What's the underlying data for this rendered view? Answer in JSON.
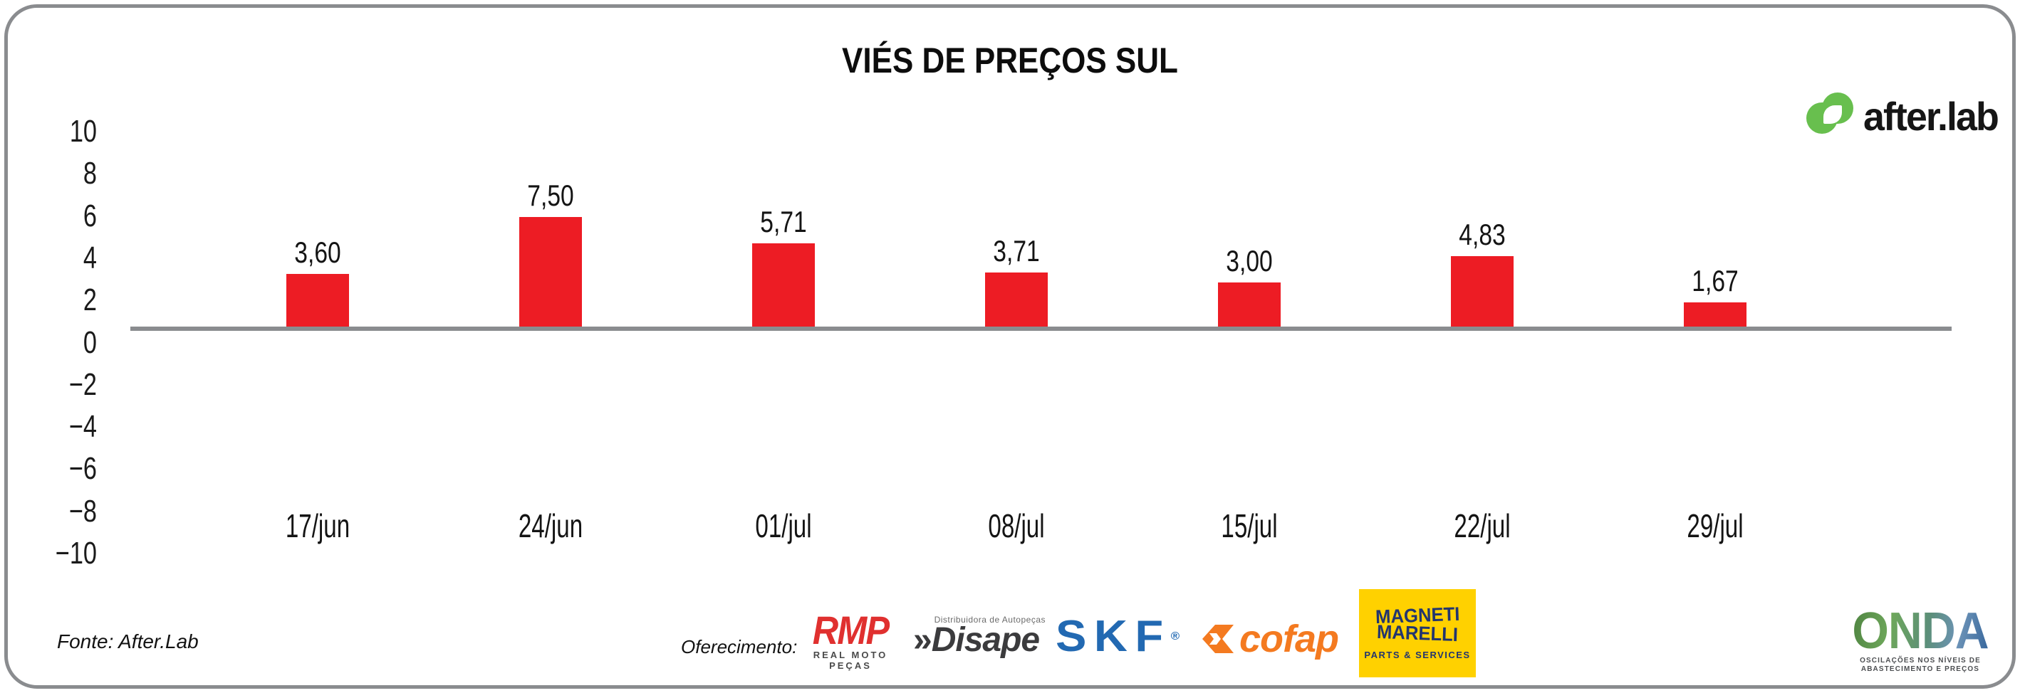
{
  "header": {
    "title": "VIÉS DE PREÇOS SUL"
  },
  "brand": {
    "wordmark": "after.lab",
    "icon_color": "#68bf4e"
  },
  "chart_data": {
    "type": "bar",
    "title": "VIÉS DE PREÇOS SUL",
    "categories": [
      "17/jun",
      "24/jun",
      "01/jul",
      "08/jul",
      "15/jul",
      "22/jul",
      "29/jul"
    ],
    "values": [
      3.6,
      7.5,
      5.71,
      3.71,
      3.0,
      4.83,
      1.67
    ],
    "value_labels": [
      "3,60",
      "7,50",
      "5,71",
      "3,71",
      "3,00",
      "4,83",
      "1,67"
    ],
    "ytick_labels": [
      "10",
      "8",
      "6",
      "4",
      "2",
      "0",
      "−2",
      "−4",
      "−6",
      "−8",
      "−10"
    ],
    "yticks": [
      10,
      8,
      6,
      4,
      2,
      0,
      -2,
      -4,
      -6,
      -8,
      -10
    ],
    "ylim": [
      -10,
      10
    ],
    "bar_color": "#ed1c24",
    "axis_line_color": "#8a8c8f",
    "grid": false,
    "legend": false
  },
  "footer": {
    "source": "Fonte: After.Lab",
    "sponsor_label": "Oferecimento:",
    "sponsors": {
      "rmp": {
        "name": "RMP",
        "subtext": "REAL MOTO PEÇAS",
        "color": "#e0302f"
      },
      "disape": {
        "prefix": "»",
        "name": "Disape",
        "subtext": "Distribuidora de Autopeças",
        "color": "#3b3b3d"
      },
      "skf": {
        "name": "SKF",
        "registered": "®",
        "color": "#2269b2"
      },
      "cofap": {
        "name": "cofap",
        "color": "#f47a20"
      },
      "magneti": {
        "line1": "MAGNETI",
        "line2": "MARELLI",
        "subtext": "PARTS & SERVICES",
        "bg": "#ffd100",
        "color": "#22356f"
      }
    },
    "onda": {
      "name": "ONDA",
      "tagline": "OSCILAÇÕES NOS NÍVEIS DE ABASTECIMENTO E PREÇOS"
    }
  }
}
